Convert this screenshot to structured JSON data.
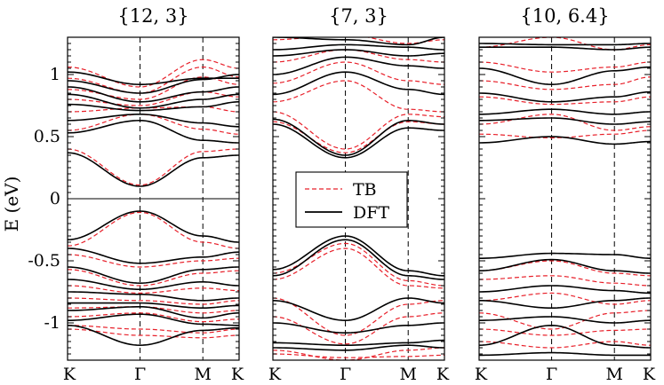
{
  "chart_data": {
    "type": "line",
    "ylabel": "E (eV)",
    "ylim": [
      -1.3,
      1.3
    ],
    "yticks": [
      {
        "value": 1,
        "label": "1"
      },
      {
        "value": 0.5,
        "label": "0.5"
      },
      {
        "value": 0,
        "label": "0"
      },
      {
        "value": -0.5,
        "label": "-0.5"
      },
      {
        "value": -1,
        "label": "-1"
      }
    ],
    "kpath": [
      "K",
      "Γ",
      "M",
      "K"
    ],
    "kpath_positions": [
      0,
      1,
      1.866,
      2.366
    ],
    "legend": {
      "position": "center",
      "panel": 1,
      "entries": [
        {
          "label": "TB",
          "style": "dashed",
          "color": "#e8202a"
        },
        {
          "label": "DFT",
          "style": "solid",
          "color": "#000000"
        }
      ]
    },
    "colors": {
      "TB": "#e8202a",
      "DFT": "#000000"
    },
    "panels": [
      {
        "title": "{12, 3}",
        "bands": [
          {
            "name": "DFT",
            "v": [
              1.02,
              0.92,
              0.97,
              0.97
            ]
          },
          {
            "name": "DFT",
            "v": [
              0.95,
              0.85,
              0.96,
              1.0
            ]
          },
          {
            "name": "DFT",
            "v": [
              0.9,
              0.78,
              0.86,
              0.9
            ]
          },
          {
            "name": "DFT",
            "v": [
              0.84,
              0.73,
              0.8,
              0.84
            ]
          },
          {
            "name": "DFT",
            "v": [
              0.76,
              0.71,
              0.74,
              0.78
            ]
          },
          {
            "name": "DFT",
            "v": [
              0.63,
              0.68,
              0.61,
              0.58
            ]
          },
          {
            "name": "DFT",
            "v": [
              0.53,
              0.63,
              0.47,
              0.45
            ]
          },
          {
            "name": "DFT",
            "v": [
              0.37,
              0.1,
              0.33,
              0.35
            ]
          },
          {
            "name": "DFT",
            "v": [
              -0.33,
              -0.1,
              -0.3,
              -0.35
            ]
          },
          {
            "name": "DFT",
            "v": [
              -0.4,
              -0.52,
              -0.47,
              -0.43
            ]
          },
          {
            "name": "DFT",
            "v": [
              -0.55,
              -0.68,
              -0.57,
              -0.55
            ]
          },
          {
            "name": "DFT",
            "v": [
              -0.65,
              -0.73,
              -0.67,
              -0.7
            ]
          },
          {
            "name": "DFT",
            "v": [
              -0.75,
              -0.77,
              -0.82,
              -0.8
            ]
          },
          {
            "name": "DFT",
            "v": [
              -0.84,
              -0.84,
              -0.88,
              -0.86
            ]
          },
          {
            "name": "DFT",
            "v": [
              -0.9,
              -0.87,
              -0.96,
              -0.92
            ]
          },
          {
            "name": "DFT",
            "v": [
              -0.98,
              -0.93,
              -1.01,
              -1.02
            ]
          },
          {
            "name": "DFT",
            "v": [
              -1.02,
              -1.18,
              -1.06,
              -1.04
            ]
          },
          {
            "name": "TB",
            "v": [
              1.06,
              0.9,
              1.12,
              1.05
            ]
          },
          {
            "name": "TB",
            "v": [
              0.97,
              0.85,
              1.06,
              0.98
            ]
          },
          {
            "name": "TB",
            "v": [
              0.88,
              0.8,
              0.98,
              0.92
            ]
          },
          {
            "name": "TB",
            "v": [
              0.8,
              0.75,
              0.86,
              0.82
            ]
          },
          {
            "name": "TB",
            "v": [
              0.7,
              0.73,
              0.74,
              0.7
            ]
          },
          {
            "name": "TB",
            "v": [
              0.55,
              0.68,
              0.56,
              0.52
            ]
          },
          {
            "name": "TB",
            "v": [
              0.4,
              0.11,
              0.38,
              0.4
            ]
          },
          {
            "name": "TB",
            "v": [
              -0.38,
              -0.11,
              -0.35,
              -0.4
            ]
          },
          {
            "name": "TB",
            "v": [
              -0.45,
              -0.55,
              -0.5,
              -0.48
            ]
          },
          {
            "name": "TB",
            "v": [
              -0.57,
              -0.7,
              -0.6,
              -0.58
            ]
          },
          {
            "name": "TB",
            "v": [
              -0.7,
              -0.76,
              -0.72,
              -0.74
            ]
          },
          {
            "name": "TB",
            "v": [
              -0.8,
              -0.82,
              -0.85,
              -0.82
            ]
          },
          {
            "name": "TB",
            "v": [
              -0.88,
              -0.87,
              -0.92,
              -0.9
            ]
          },
          {
            "name": "TB",
            "v": [
              -0.95,
              -0.92,
              -0.99,
              -0.97
            ]
          },
          {
            "name": "TB",
            "v": [
              -1.02,
              -1.05,
              -1.08,
              -1.05
            ]
          },
          {
            "name": "TB",
            "v": [
              -1.05,
              -1.1,
              -1.12,
              -1.1
            ]
          }
        ]
      },
      {
        "title": "{7, 3}",
        "bands": [
          {
            "name": "DFT",
            "v": [
              1.3,
              1.28,
              1.24,
              1.3
            ]
          },
          {
            "name": "DFT",
            "v": [
              1.2,
              1.24,
              1.22,
              1.2
            ]
          },
          {
            "name": "DFT",
            "v": [
              1.15,
              1.2,
              1.15,
              1.17
            ]
          },
          {
            "name": "DFT",
            "v": [
              1.0,
              1.14,
              1.07,
              1.05
            ]
          },
          {
            "name": "DFT",
            "v": [
              0.84,
              1.02,
              0.88,
              0.84
            ]
          },
          {
            "name": "DFT",
            "v": [
              0.64,
              0.35,
              0.63,
              0.6
            ]
          },
          {
            "name": "DFT",
            "v": [
              0.6,
              0.33,
              0.57,
              0.55
            ]
          },
          {
            "name": "DFT",
            "v": [
              -0.57,
              -0.3,
              -0.58,
              -0.62
            ]
          },
          {
            "name": "DFT",
            "v": [
              -0.62,
              -0.33,
              -0.62,
              -0.65
            ]
          },
          {
            "name": "DFT",
            "v": [
              -0.82,
              -0.98,
              -0.8,
              -0.84
            ]
          },
          {
            "name": "DFT",
            "v": [
              -1.0,
              -1.08,
              -1.02,
              -1.0
            ]
          },
          {
            "name": "DFT",
            "v": [
              -1.16,
              -1.18,
              -1.16,
              -1.14
            ]
          },
          {
            "name": "DFT",
            "v": [
              -1.2,
              -1.22,
              -1.18,
              -1.2
            ]
          },
          {
            "name": "TB",
            "v": [
              1.28,
              1.32,
              1.25,
              1.28
            ]
          },
          {
            "name": "TB",
            "v": [
              1.1,
              1.2,
              1.12,
              1.1
            ]
          },
          {
            "name": "TB",
            "v": [
              0.93,
              1.1,
              0.95,
              0.92
            ]
          },
          {
            "name": "TB",
            "v": [
              0.78,
              0.95,
              0.72,
              0.7
            ]
          },
          {
            "name": "TB",
            "v": [
              0.7,
              0.4,
              0.68,
              0.66
            ]
          },
          {
            "name": "TB",
            "v": [
              0.62,
              0.37,
              0.62,
              0.6
            ]
          },
          {
            "name": "TB",
            "v": [
              -0.6,
              -0.36,
              -0.66,
              -0.7
            ]
          },
          {
            "name": "TB",
            "v": [
              -0.65,
              -0.4,
              -0.7,
              -0.72
            ]
          },
          {
            "name": "TB",
            "v": [
              -0.8,
              -1.1,
              -0.85,
              -0.82
            ]
          },
          {
            "name": "TB",
            "v": [
              -0.95,
              -1.17,
              -0.95,
              -0.92
            ]
          },
          {
            "name": "TB",
            "v": [
              -1.22,
              -1.3,
              -1.22,
              -1.2
            ]
          },
          {
            "name": "TB",
            "v": [
              -1.25,
              -1.28,
              -1.27,
              -1.26
            ]
          }
        ]
      },
      {
        "title": "{10, 6.4}",
        "bands": [
          {
            "name": "DFT",
            "v": [
              1.25,
              1.24,
              1.24,
              1.25
            ]
          },
          {
            "name": "DFT",
            "v": [
              1.22,
              1.22,
              1.2,
              1.22
            ]
          },
          {
            "name": "DFT",
            "v": [
              1.05,
              0.92,
              1.03,
              1.06
            ]
          },
          {
            "name": "DFT",
            "v": [
              0.85,
              0.78,
              0.82,
              0.86
            ]
          },
          {
            "name": "DFT",
            "v": [
              0.68,
              0.72,
              0.68,
              0.7
            ]
          },
          {
            "name": "DFT",
            "v": [
              0.63,
              0.65,
              0.6,
              0.62
            ]
          },
          {
            "name": "DFT",
            "v": [
              0.45,
              0.5,
              0.44,
              0.46
            ]
          },
          {
            "name": "DFT",
            "v": [
              -0.48,
              -0.44,
              -0.45,
              -0.48
            ]
          },
          {
            "name": "DFT",
            "v": [
              -0.58,
              -0.49,
              -0.58,
              -0.6
            ]
          },
          {
            "name": "DFT",
            "v": [
              -0.75,
              -0.7,
              -0.74,
              -0.76
            ]
          },
          {
            "name": "DFT",
            "v": [
              -0.82,
              -0.88,
              -0.82,
              -0.8
            ]
          },
          {
            "name": "DFT",
            "v": [
              -0.98,
              -0.95,
              -1.0,
              -0.98
            ]
          },
          {
            "name": "DFT",
            "v": [
              -1.18,
              -1.02,
              -1.18,
              -1.2
            ]
          },
          {
            "name": "DFT",
            "v": [
              -1.26,
              -1.24,
              -1.26,
              -1.26
            ]
          },
          {
            "name": "TB",
            "v": [
              1.22,
              1.3,
              1.2,
              1.24
            ]
          },
          {
            "name": "TB",
            "v": [
              1.1,
              1.02,
              1.06,
              1.1
            ]
          },
          {
            "name": "TB",
            "v": [
              0.95,
              0.88,
              0.92,
              0.98
            ]
          },
          {
            "name": "TB",
            "v": [
              0.82,
              0.76,
              0.78,
              0.82
            ]
          },
          {
            "name": "TB",
            "v": [
              0.6,
              0.68,
              0.55,
              0.58
            ]
          },
          {
            "name": "TB",
            "v": [
              0.52,
              0.49,
              0.52,
              0.55
            ]
          },
          {
            "name": "TB",
            "v": [
              -0.58,
              -0.5,
              -0.6,
              -0.62
            ]
          },
          {
            "name": "TB",
            "v": [
              -0.65,
              -0.62,
              -0.68,
              -0.7
            ]
          },
          {
            "name": "TB",
            "v": [
              -0.82,
              -0.76,
              -0.85,
              -0.82
            ]
          },
          {
            "name": "TB",
            "v": [
              -0.92,
              -1.05,
              -0.92,
              -0.9
            ]
          },
          {
            "name": "TB",
            "v": [
              -1.05,
              -1.1,
              -1.06,
              -1.05
            ]
          },
          {
            "name": "TB",
            "v": [
              -1.15,
              -1.2,
              -1.15,
              -1.18
            ]
          }
        ]
      }
    ]
  }
}
